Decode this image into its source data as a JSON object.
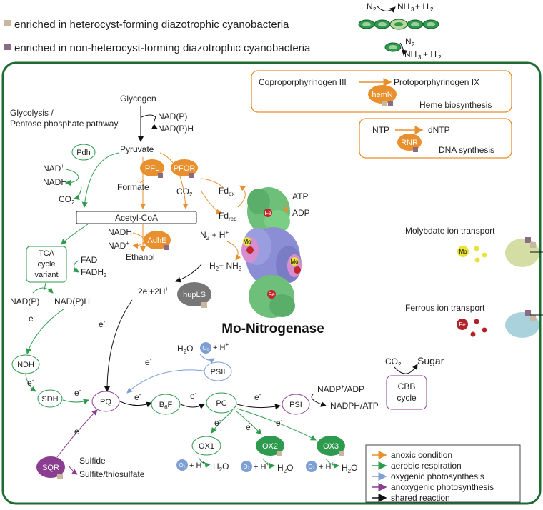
{
  "legend_top": {
    "heterocyst": "enriched in heterocyst-forming diazotrophic cyanobacteria",
    "non_heterocyst": "enriched in non-heterocyst-forming diazotrophic cyanobacteria",
    "colors": {
      "heterocyst": "#c9b8a0",
      "non_heterocyst": "#8a6b86"
    }
  },
  "reaction_top": {
    "n2": "N",
    "nh3": "NH",
    "h2": "+ H"
  },
  "title": "Mo-Nitrogenase",
  "boxes": {
    "heme": {
      "substrate": "Coproporphyrinogen III",
      "product": "Protoporphyrinogen IX",
      "enzyme": "hemN",
      "label": "Heme biosynthesis"
    },
    "dna": {
      "substrate": "NTP",
      "product": "dNTP",
      "enzyme": "RNR",
      "label": "DNA synthesis"
    },
    "tca": "TCA cycle variant",
    "cbb": "CBB cycle",
    "acetyl": "Acetyl-CoA"
  },
  "metabolites": {
    "glycogen": "Glycogen",
    "glycolysis": "Glycolysis /",
    "ppp": "Pentose phosphate pathway",
    "pyruvate": "Pyruvate",
    "formate": "Formate",
    "ethanol": "Ethanol",
    "atp": "ATP",
    "adp": "ADP",
    "sugar": "Sugar",
    "sulfide": "Sulfide",
    "sulfite": "Sulfite/thiosulfate",
    "electron_pair": "2e+2H",
    "h2_nh3": "H + NH"
  },
  "enzymes": {
    "pdh": "Pdh",
    "pfl": "PFL",
    "pfor": "PFOR",
    "adhe": "AdhE",
    "hupls": "hupLS",
    "ndh": "NDH",
    "sdh": "SDH",
    "pq": "PQ",
    "b6f": "B F",
    "pc": "PC",
    "psi": "PSI",
    "psii": "PSII",
    "sqr": "SQR",
    "ox1": "OX1",
    "ox2": "OX2",
    "ox3": "OX3"
  },
  "transport": {
    "molybdate": "Molybdate ion transport",
    "ferrous": "Ferrous ion transport",
    "mo": "Mo",
    "fe": "Fe"
  },
  "legend_bottom": [
    {
      "label": "anoxic condition",
      "color": "#e8902e"
    },
    {
      "label": "aerobic respiration",
      "color": "#2e9a4e"
    },
    {
      "label": "oxygenic photosynthesis",
      "color": "#7d9fd4"
    },
    {
      "label": "anoxygenic photosynthesis",
      "color": "#8b3d8f"
    },
    {
      "label": "shared reaction",
      "color": "#111111"
    }
  ]
}
